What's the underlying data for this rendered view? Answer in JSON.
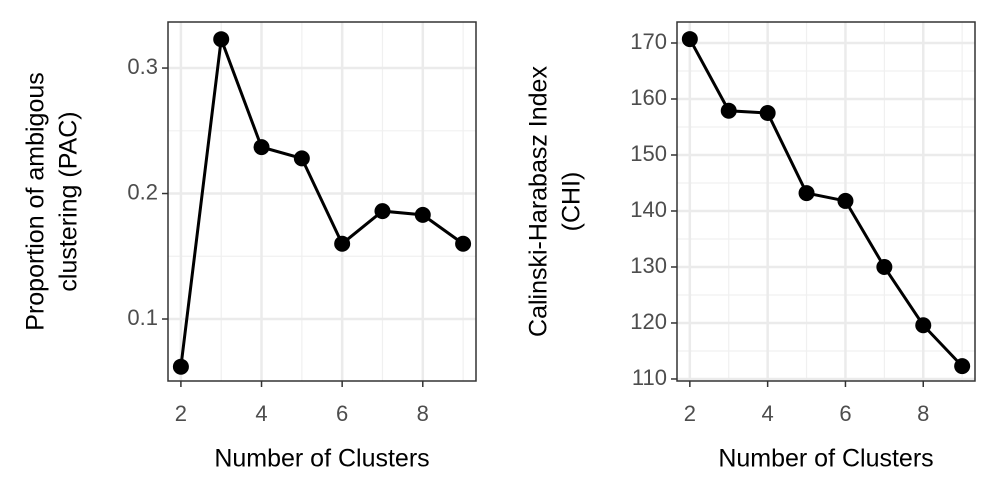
{
  "chart_data": [
    {
      "type": "line",
      "xlabel": "Number of Clusters",
      "ylabel": [
        "Proportion of ambigous",
        "clustering (PAC)"
      ],
      "x": [
        2,
        3,
        4,
        5,
        6,
        7,
        8,
        9
      ],
      "values": [
        0.062,
        0.323,
        0.237,
        0.228,
        0.16,
        0.186,
        0.183,
        0.16
      ],
      "color": "#000000",
      "grid": true,
      "xlim": [
        1.68,
        9.32
      ],
      "xticks": [
        2,
        4,
        6,
        8
      ],
      "ylim": [
        0.0506,
        0.3367
      ],
      "yticks": [
        0.1,
        0.2,
        0.3
      ]
    },
    {
      "type": "line",
      "xlabel": "Number of Clusters",
      "ylabel": [
        "Calinski-Harabasz Index",
        "(CHI)"
      ],
      "x": [
        2,
        3,
        4,
        5,
        6,
        7,
        8,
        9
      ],
      "values": [
        170.7,
        157.9,
        157.5,
        143.2,
        141.8,
        130.0,
        119.6,
        112.3
      ],
      "color": "#000000",
      "grid": true,
      "xlim": [
        1.67,
        9.33
      ],
      "xticks": [
        2,
        4,
        6,
        8
      ],
      "ylim": [
        109.64,
        173.75
      ],
      "yticks": [
        110,
        120,
        130,
        140,
        150,
        160,
        170
      ]
    }
  ]
}
